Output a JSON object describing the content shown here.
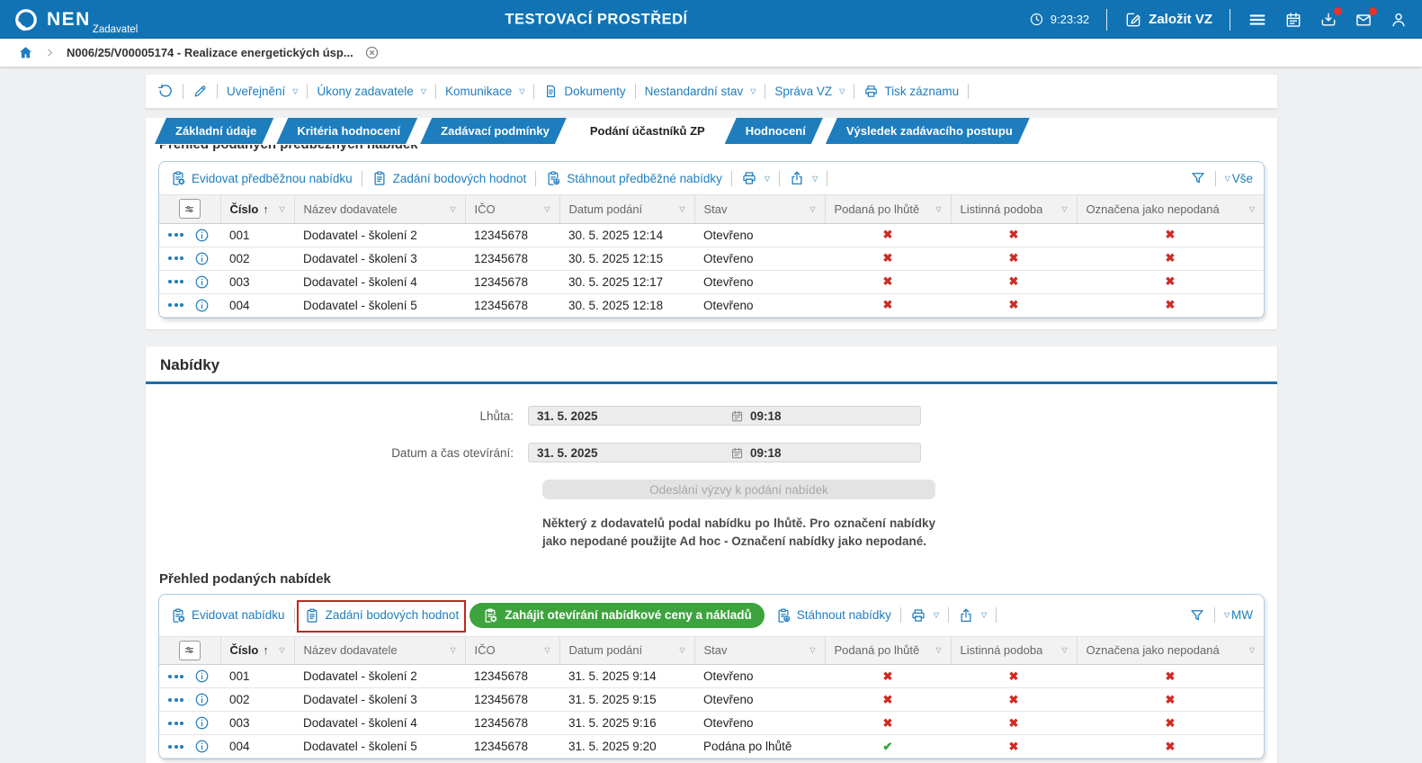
{
  "topbar": {
    "brand": "NEN",
    "brand_sub": "Zadavatel",
    "environment": "TESTOVACÍ PROSTŘEDÍ",
    "time": "9:23:32",
    "create_button": "Založit VZ"
  },
  "breadcrumb": {
    "item": "N006/25/V00005174 - Realizace energetických úsp..."
  },
  "record_toolbar": {
    "items": [
      {
        "label": "Uveřejnění",
        "dropdown": true
      },
      {
        "label": "Úkony zadavatele",
        "dropdown": true
      },
      {
        "label": "Komunikace",
        "dropdown": true
      },
      {
        "label": "Dokumenty",
        "icon": "document"
      },
      {
        "label": "Nestandardní stav",
        "dropdown": true
      },
      {
        "label": "Správa VZ",
        "dropdown": true
      },
      {
        "label": "Tisk záznamu",
        "icon": "printer"
      }
    ]
  },
  "tabs": {
    "items": [
      "Základní údaje",
      "Kritéria hodnocení",
      "Zadávací podmínky",
      "Podání účastníků ZP",
      "Hodnocení",
      "Výsledek zadávacího postupu"
    ],
    "active_index": 3
  },
  "pre_offers": {
    "section_title": "Přehled podaných předběžných nabídek",
    "toolbar": {
      "buttons": [
        {
          "label": "Evidovat předběžnou nabídku",
          "icon": "clipboard-gear"
        },
        {
          "label": "Zadání bodových hodnot",
          "icon": "clipboard"
        },
        {
          "label": "Stáhnout předběžné nabídky",
          "icon": "clipboard-download"
        }
      ],
      "scope": "Vše"
    },
    "table": {
      "columns": [
        "Číslo",
        "Název dodavatele",
        "IČO",
        "Datum podání",
        "Stav",
        "Podaná po lhůtě",
        "Listinná podoba",
        "Označena jako nepodaná"
      ],
      "sorted_column": "Číslo",
      "rows": [
        {
          "cislo": "001",
          "dodavatel": "Dodavatel - školení 2",
          "ico": "12345678",
          "datum": "30. 5. 2025 12:14",
          "stav": "Otevřeno",
          "podana_po_lhute": false,
          "listinna_podoba": false,
          "oznacena_jako_nepodana": false
        },
        {
          "cislo": "002",
          "dodavatel": "Dodavatel - školení 3",
          "ico": "12345678",
          "datum": "30. 5. 2025 12:15",
          "stav": "Otevřeno",
          "podana_po_lhute": false,
          "listinna_podoba": false,
          "oznacena_jako_nepodana": false
        },
        {
          "cislo": "003",
          "dodavatel": "Dodavatel - školení 4",
          "ico": "12345678",
          "datum": "30. 5. 2025 12:17",
          "stav": "Otevřeno",
          "podana_po_lhute": false,
          "listinna_podoba": false,
          "oznacena_jako_nepodana": false
        },
        {
          "cislo": "004",
          "dodavatel": "Dodavatel - školení 5",
          "ico": "12345678",
          "datum": "30. 5. 2025 12:18",
          "stav": "Otevřeno",
          "podana_po_lhute": false,
          "listinna_podoba": false,
          "oznacena_jako_nepodana": false
        }
      ]
    }
  },
  "offers_section": {
    "title": "Nabídky",
    "fields": [
      {
        "label": "Lhůta:",
        "date": "31. 5. 2025",
        "time": "09:18"
      },
      {
        "label": "Datum a čas otevírání:",
        "date": "31. 5. 2025",
        "time": "09:18"
      }
    ],
    "disabled_button": "Odeslání výzvy k podání nabídek",
    "warning": "Některý z dodavatelů podal nabídku po lhůtě. Pro označení nabídky jako nepodané použijte Ad hoc - Označení nabídky jako nepodané."
  },
  "offers": {
    "section_title": "Přehled podaných nabídek",
    "toolbar": {
      "buttons": [
        {
          "label": "Evidovat nabídku",
          "icon": "clipboard-gear"
        },
        {
          "label": "Zadání bodových hodnot",
          "icon": "clipboard",
          "annotated": true
        },
        {
          "label": "Zahájit otevírání nabídkové ceny a nákladů",
          "icon": "clipboard-gear",
          "variant": "green"
        },
        {
          "label": "Stáhnout nabídky",
          "icon": "clipboard-download"
        }
      ],
      "scope": "MW"
    },
    "table": {
      "columns": [
        "Číslo",
        "Název dodavatele",
        "IČO",
        "Datum podání",
        "Stav",
        "Podaná po lhůtě",
        "Listinná podoba",
        "Označena jako nepodaná"
      ],
      "sorted_column": "Číslo",
      "rows": [
        {
          "cislo": "001",
          "dodavatel": "Dodavatel - školení 2",
          "ico": "12345678",
          "datum": "31. 5. 2025 9:14",
          "stav": "Otevřeno",
          "podana_po_lhute": false,
          "listinna_podoba": false,
          "oznacena_jako_nepodana": false
        },
        {
          "cislo": "002",
          "dodavatel": "Dodavatel - školení 3",
          "ico": "12345678",
          "datum": "31. 5. 2025 9:15",
          "stav": "Otevřeno",
          "podana_po_lhute": false,
          "listinna_podoba": false,
          "oznacena_jako_nepodana": false
        },
        {
          "cislo": "003",
          "dodavatel": "Dodavatel - školení 4",
          "ico": "12345678",
          "datum": "31. 5. 2025 9:16",
          "stav": "Otevřeno",
          "podana_po_lhute": false,
          "listinna_podoba": false,
          "oznacena_jako_nepodana": false
        },
        {
          "cislo": "004",
          "dodavatel": "Dodavatel - školení 5",
          "ico": "12345678",
          "datum": "31. 5. 2025 9:20",
          "stav": "Podána po lhůtě",
          "podana_po_lhute": true,
          "listinna_podoba": false,
          "oznacena_jako_nepodana": false
        }
      ]
    }
  }
}
